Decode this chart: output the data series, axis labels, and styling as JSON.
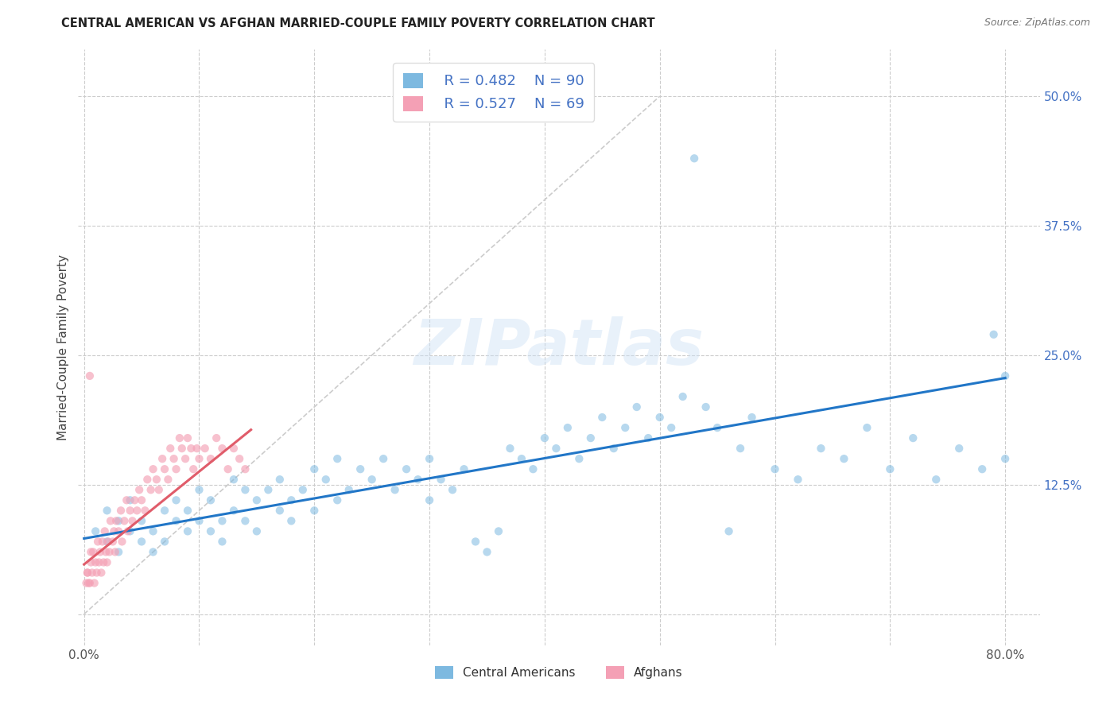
{
  "title": "CENTRAL AMERICAN VS AFGHAN MARRIED-COUPLE FAMILY POVERTY CORRELATION CHART",
  "source": "Source: ZipAtlas.com",
  "ylabel": "Married-Couple Family Poverty",
  "xlim": [
    -0.005,
    0.83
  ],
  "ylim": [
    -0.03,
    0.545
  ],
  "xticks": [
    0.0,
    0.1,
    0.2,
    0.3,
    0.4,
    0.5,
    0.6,
    0.7,
    0.8
  ],
  "yticks": [
    0.0,
    0.125,
    0.25,
    0.375,
    0.5
  ],
  "blue_color": "#7db9e0",
  "pink_color": "#f4a0b5",
  "blue_line_color": "#2176c7",
  "pink_line_color": "#e05c6a",
  "watermark": "ZIPatlas",
  "legend_R_blue": "R = 0.482",
  "legend_N_blue": "N = 90",
  "legend_R_pink": "R = 0.527",
  "legend_N_pink": "N = 69",
  "blue_scatter_x": [
    0.01,
    0.02,
    0.02,
    0.03,
    0.03,
    0.04,
    0.04,
    0.05,
    0.05,
    0.06,
    0.06,
    0.07,
    0.07,
    0.08,
    0.08,
    0.09,
    0.09,
    0.1,
    0.1,
    0.11,
    0.11,
    0.12,
    0.12,
    0.13,
    0.13,
    0.14,
    0.14,
    0.15,
    0.15,
    0.16,
    0.17,
    0.17,
    0.18,
    0.18,
    0.19,
    0.2,
    0.2,
    0.21,
    0.22,
    0.22,
    0.23,
    0.24,
    0.25,
    0.26,
    0.27,
    0.28,
    0.29,
    0.3,
    0.3,
    0.31,
    0.32,
    0.33,
    0.34,
    0.35,
    0.36,
    0.37,
    0.38,
    0.39,
    0.4,
    0.41,
    0.42,
    0.43,
    0.44,
    0.45,
    0.46,
    0.47,
    0.48,
    0.49,
    0.5,
    0.51,
    0.52,
    0.53,
    0.54,
    0.55,
    0.56,
    0.57,
    0.58,
    0.6,
    0.62,
    0.64,
    0.66,
    0.68,
    0.7,
    0.72,
    0.74,
    0.76,
    0.78,
    0.79,
    0.8,
    0.8
  ],
  "blue_scatter_y": [
    0.08,
    0.07,
    0.1,
    0.09,
    0.06,
    0.08,
    0.11,
    0.07,
    0.09,
    0.08,
    0.06,
    0.1,
    0.07,
    0.09,
    0.11,
    0.08,
    0.1,
    0.09,
    0.12,
    0.08,
    0.11,
    0.09,
    0.07,
    0.1,
    0.13,
    0.09,
    0.12,
    0.11,
    0.08,
    0.12,
    0.1,
    0.13,
    0.11,
    0.09,
    0.12,
    0.1,
    0.14,
    0.13,
    0.11,
    0.15,
    0.12,
    0.14,
    0.13,
    0.15,
    0.12,
    0.14,
    0.13,
    0.11,
    0.15,
    0.13,
    0.12,
    0.14,
    0.07,
    0.06,
    0.08,
    0.16,
    0.15,
    0.14,
    0.17,
    0.16,
    0.18,
    0.15,
    0.17,
    0.19,
    0.16,
    0.18,
    0.2,
    0.17,
    0.19,
    0.18,
    0.21,
    0.44,
    0.2,
    0.18,
    0.08,
    0.16,
    0.19,
    0.14,
    0.13,
    0.16,
    0.15,
    0.18,
    0.14,
    0.17,
    0.13,
    0.16,
    0.14,
    0.27,
    0.15,
    0.23
  ],
  "pink_scatter_x": [
    0.003,
    0.005,
    0.006,
    0.007,
    0.008,
    0.009,
    0.01,
    0.011,
    0.012,
    0.013,
    0.014,
    0.015,
    0.016,
    0.017,
    0.018,
    0.019,
    0.02,
    0.021,
    0.022,
    0.023,
    0.025,
    0.026,
    0.027,
    0.028,
    0.03,
    0.032,
    0.033,
    0.035,
    0.037,
    0.038,
    0.04,
    0.042,
    0.044,
    0.046,
    0.048,
    0.05,
    0.053,
    0.055,
    0.058,
    0.06,
    0.063,
    0.065,
    0.068,
    0.07,
    0.073,
    0.075,
    0.078,
    0.08,
    0.083,
    0.085,
    0.088,
    0.09,
    0.093,
    0.095,
    0.098,
    0.1,
    0.105,
    0.11,
    0.115,
    0.12,
    0.125,
    0.13,
    0.135,
    0.14,
    0.002,
    0.003,
    0.004,
    0.005,
    0.006
  ],
  "pink_scatter_y": [
    0.04,
    0.03,
    0.05,
    0.04,
    0.06,
    0.03,
    0.05,
    0.04,
    0.07,
    0.05,
    0.06,
    0.04,
    0.07,
    0.05,
    0.08,
    0.06,
    0.05,
    0.07,
    0.06,
    0.09,
    0.07,
    0.08,
    0.06,
    0.09,
    0.08,
    0.1,
    0.07,
    0.09,
    0.11,
    0.08,
    0.1,
    0.09,
    0.11,
    0.1,
    0.12,
    0.11,
    0.1,
    0.13,
    0.12,
    0.14,
    0.13,
    0.12,
    0.15,
    0.14,
    0.13,
    0.16,
    0.15,
    0.14,
    0.17,
    0.16,
    0.15,
    0.17,
    0.16,
    0.14,
    0.16,
    0.15,
    0.16,
    0.15,
    0.17,
    0.16,
    0.14,
    0.16,
    0.15,
    0.14,
    0.03,
    0.04,
    0.03,
    0.23,
    0.06
  ],
  "blue_trend_x": [
    0.0,
    0.8
  ],
  "blue_trend_y": [
    0.073,
    0.228
  ],
  "pink_trend_x": [
    0.0,
    0.145
  ],
  "pink_trend_y": [
    0.048,
    0.178
  ],
  "diag_line_x": [
    0.0,
    0.5
  ],
  "diag_line_y": [
    0.0,
    0.5
  ]
}
